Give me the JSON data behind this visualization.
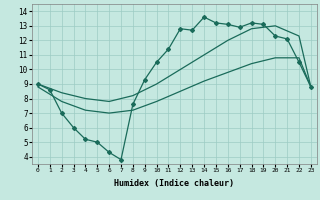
{
  "xlabel": "Humidex (Indice chaleur)",
  "bg_color": "#c5e8e0",
  "grid_color": "#9dccc4",
  "line_color": "#1a6b5a",
  "xlim": [
    -0.5,
    23.5
  ],
  "ylim": [
    3.5,
    14.5
  ],
  "xticks": [
    0,
    1,
    2,
    3,
    4,
    5,
    6,
    7,
    8,
    9,
    10,
    11,
    12,
    13,
    14,
    15,
    16,
    17,
    18,
    19,
    20,
    21,
    22,
    23
  ],
  "yticks": [
    4,
    5,
    6,
    7,
    8,
    9,
    10,
    11,
    12,
    13,
    14
  ],
  "line1_x": [
    0,
    1,
    2,
    3,
    4,
    5,
    6,
    7,
    8,
    9,
    10,
    11,
    12,
    13,
    14,
    15,
    16,
    17,
    18,
    19,
    20,
    21,
    22,
    23
  ],
  "line1_y": [
    9.0,
    8.6,
    7.0,
    6.0,
    5.2,
    5.0,
    4.3,
    3.8,
    7.6,
    9.3,
    10.5,
    11.4,
    12.8,
    12.7,
    13.6,
    13.2,
    13.1,
    12.9,
    13.2,
    13.1,
    12.3,
    12.1,
    10.5,
    8.8
  ],
  "line2_x": [
    0,
    23
  ],
  "line2_y": [
    8.8,
    8.8
  ],
  "line3_x": [
    0,
    23
  ],
  "line3_y": [
    8.8,
    8.8
  ],
  "smooth2_x": [
    0,
    2,
    4,
    6,
    8,
    10,
    12,
    14,
    16,
    18,
    20,
    22,
    23
  ],
  "smooth2_y": [
    9.0,
    8.4,
    8.0,
    7.8,
    8.2,
    9.0,
    10.0,
    11.0,
    12.0,
    12.8,
    13.0,
    12.3,
    8.8
  ],
  "smooth3_x": [
    0,
    2,
    4,
    6,
    8,
    10,
    12,
    14,
    16,
    18,
    20,
    22,
    23
  ],
  "smooth3_y": [
    8.8,
    7.8,
    7.2,
    7.0,
    7.2,
    7.8,
    8.5,
    9.2,
    9.8,
    10.4,
    10.8,
    10.8,
    8.8
  ],
  "font_family": "monospace"
}
